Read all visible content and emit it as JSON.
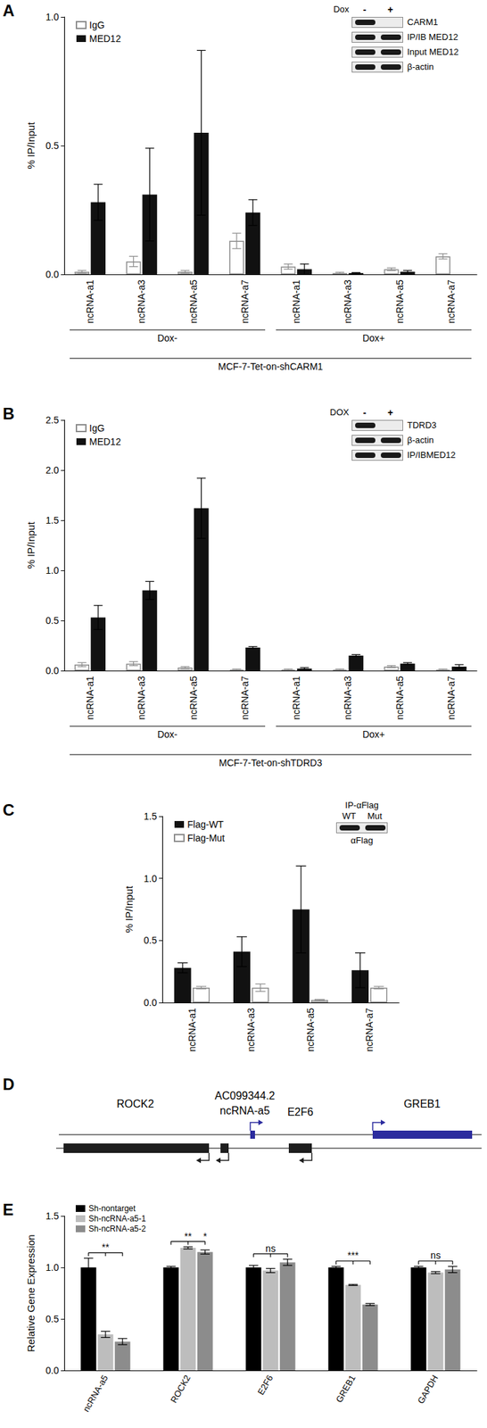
{
  "panel_labels": [
    "A",
    "B",
    "C",
    "D",
    "E"
  ],
  "chart_data": [
    {
      "type": "bar",
      "y_label": "% IP/Input",
      "categories": [
        "ncRNA-a1",
        "ncRNA-a3",
        "ncRNA-a5",
        "ncRNA-a7",
        "ncRNA-a1",
        "ncRNA-a3",
        "ncRNA-a5",
        "ncRNA-a7"
      ],
      "x_groups": [
        "Dox-",
        "Dox+"
      ],
      "x_label": "MCF-7-Tet-on-shCARM1",
      "series": [
        {
          "name": "IgG",
          "color": "#8c8c8c",
          "marker": "hollow",
          "values": [
            0.01,
            0.05,
            0.01,
            0.13,
            0.03,
            0.005,
            0.02,
            0.07
          ],
          "errors": [
            0.005,
            0.02,
            0.005,
            0.03,
            0.01,
            0.003,
            0.005,
            0.01
          ]
        },
        {
          "name": "MED12",
          "color": "#111111",
          "values": [
            0.28,
            0.31,
            0.55,
            0.24,
            0.02,
            0.005,
            0.01,
            0
          ],
          "errors": [
            0.07,
            0.18,
            0.32,
            0.05,
            0.02,
            0.002,
            0.005,
            0
          ]
        }
      ],
      "ylim": [
        0,
        1
      ],
      "yticks": [
        {
          "value": 0,
          "label": "0.0"
        },
        {
          "value": 0.5,
          "label": "0.5"
        },
        {
          "value": 1,
          "label": "1.0"
        }
      ],
      "legend": "top-left",
      "grid": false,
      "inset": {
        "header": "Dox",
        "lanes": [
          "-",
          "+"
        ],
        "rows": [
          {
            "name": "CARM1",
            "bands": [
              true,
              false
            ]
          },
          {
            "name": "IP/IB MED12",
            "bands": [
              true,
              true
            ]
          },
          {
            "name": "Input MED12",
            "bands": [
              true,
              true
            ]
          },
          {
            "name": "β-actin",
            "bands": [
              true,
              true
            ]
          }
        ]
      }
    },
    {
      "type": "bar",
      "y_label": "% IP/Input",
      "categories": [
        "ncRNA-a1",
        "ncRNA-a3",
        "ncRNA-a5",
        "ncRNA-a7",
        "ncRNA-a1",
        "ncRNA-a3",
        "ncRNA-a5",
        "ncRNA-a7"
      ],
      "x_groups": [
        "Dox-",
        "Dox+"
      ],
      "x_label": "MCF-7-Tet-on-shTDRD3",
      "series": [
        {
          "name": "IgG",
          "color": "#8c8c8c",
          "marker": "hollow",
          "values": [
            0.06,
            0.07,
            0.03,
            0.01,
            0.01,
            0.01,
            0.04,
            0.01
          ],
          "errors": [
            0.02,
            0.02,
            0.01,
            0.005,
            0.005,
            0.005,
            0.01,
            0.005
          ]
        },
        {
          "name": "MED12",
          "color": "#111111",
          "values": [
            0.53,
            0.8,
            1.62,
            0.23,
            0.02,
            0.15,
            0.07,
            0.04
          ],
          "errors": [
            0.12,
            0.09,
            0.3,
            0.01,
            0.01,
            0.01,
            0.01,
            0.02
          ]
        }
      ],
      "ylim": [
        0,
        2.5
      ],
      "yticks": [
        {
          "value": 0,
          "label": "0.0"
        },
        {
          "value": 0.5,
          "label": "0.5"
        },
        {
          "value": 1,
          "label": "1.0"
        },
        {
          "value": 1.5,
          "label": "1.5"
        },
        {
          "value": 2,
          "label": "2.0"
        },
        {
          "value": 2.5,
          "label": "2.5"
        }
      ],
      "legend": "top-left",
      "grid": false,
      "inset": {
        "header": "DOX",
        "lanes": [
          "-",
          "+"
        ],
        "rows": [
          {
            "name": "TDRD3",
            "bands": [
              true,
              false
            ]
          },
          {
            "name": "β-actin",
            "bands": [
              true,
              true
            ]
          },
          {
            "name": "IP/IBMED12",
            "bands": [
              true,
              true
            ]
          }
        ]
      }
    },
    {
      "type": "bar",
      "y_label": "% IP/Input",
      "categories": [
        "ncRNA-a1",
        "ncRNA-a3",
        "ncRNA-a5",
        "ncRNA-a7"
      ],
      "series": [
        {
          "name": "Flag-WT",
          "color": "#111111",
          "values": [
            0.28,
            0.41,
            0.75,
            0.26
          ],
          "errors": [
            0.04,
            0.12,
            0.35,
            0.14
          ]
        },
        {
          "name": "Flag-Mut",
          "color": "#8c8c8c",
          "marker": "hollow",
          "values": [
            0.12,
            0.12,
            0.02,
            0.12
          ],
          "errors": [
            0.01,
            0.03,
            0.005,
            0.01
          ]
        }
      ],
      "ylim": [
        0,
        1.5
      ],
      "yticks": [
        {
          "value": 0,
          "label": "0.0"
        },
        {
          "value": 0.5,
          "label": "0.5"
        },
        {
          "value": 1,
          "label": "1.0"
        },
        {
          "value": 1.5,
          "label": "1.5"
        }
      ],
      "legend": "top-left",
      "grid": false,
      "inset": {
        "title": "IP-αFlag",
        "lanes": [
          "WT",
          "Mut"
        ],
        "rows": [
          {
            "name": "αFlag",
            "bands": [
              true,
              true
            ]
          }
        ]
      }
    },
    {
      "type": "bar",
      "y_label": "Relative Gene Expression",
      "categories": [
        "ncRNA-a5",
        "ROCK2",
        "E2F6",
        "GREB1",
        "GAPDH"
      ],
      "series": [
        {
          "name": "Sh-nontarget",
          "color": "#000000",
          "values": [
            1.0,
            1.0,
            1.0,
            1.0,
            1.0
          ],
          "errors": [
            0.09,
            0.01,
            0.02,
            0.01,
            0.01
          ]
        },
        {
          "name": "Sh-ncRNA-a5-1",
          "color": "#bdbdbd",
          "values": [
            0.35,
            1.19,
            0.97,
            0.83,
            0.95
          ],
          "errors": [
            0.03,
            0.01,
            0.02,
            0.005,
            0.01
          ]
        },
        {
          "name": "Sh-ncRNA-a5-2",
          "color": "#8c8c8c",
          "values": [
            0.28,
            1.15,
            1.05,
            0.64,
            0.98
          ],
          "errors": [
            0.03,
            0.02,
            0.03,
            0.01,
            0.03
          ]
        }
      ],
      "ylim": [
        0,
        1.5
      ],
      "yticks": [
        {
          "value": 0,
          "label": "0.0"
        },
        {
          "value": 0.5,
          "label": "0.5"
        },
        {
          "value": 1,
          "label": "1.0"
        },
        {
          "value": 1.5,
          "label": "1.5"
        }
      ],
      "legend": "top-left",
      "grid": false,
      "significance": [
        {
          "category": "ncRNA-a5",
          "labels": [
            "**"
          ]
        },
        {
          "category": "ROCK2",
          "labels": [
            "**",
            "*"
          ]
        },
        {
          "category": "E2F6",
          "labels": [
            "ns"
          ]
        },
        {
          "category": "GREB1",
          "labels": [
            "***"
          ]
        },
        {
          "category": "GAPDH",
          "labels": [
            "ns"
          ]
        }
      ]
    }
  ],
  "diagram": {
    "genes": [
      {
        "name": "ROCK2",
        "strand": "-"
      },
      {
        "name": "AC099344.2",
        "strand": "-"
      },
      {
        "name": "ncRNA-a5",
        "strand": "+"
      },
      {
        "name": "E2F6",
        "strand": "-"
      },
      {
        "name": "GREB1",
        "strand": "+"
      }
    ]
  }
}
